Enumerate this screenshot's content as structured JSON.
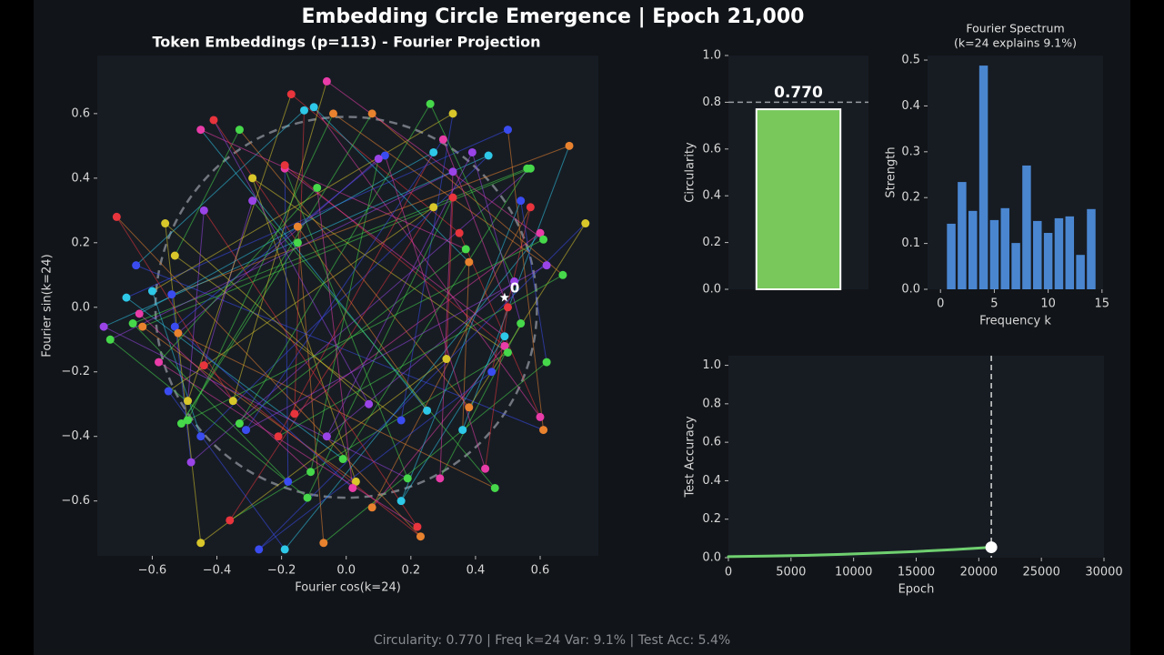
{
  "title": "Embedding Circle Emergence | Epoch 21,000",
  "footer": "Circularity: 0.770 | Freq k=24 Var: 9.1% | Test Acc: 5.4%",
  "chart_data": [
    {
      "type": "scatter",
      "title": "Token Embeddings (p=113) - Fourier Projection",
      "xlabel": "Fourier cos(k=24)",
      "ylabel": "Fourier sin(k=24)",
      "xlim": [
        -0.77,
        0.78
      ],
      "ylim": [
        -0.77,
        0.78
      ],
      "xticks": [
        {
          "value": -0.6,
          "label": "−0.6"
        },
        {
          "value": -0.4,
          "label": "−0.4"
        },
        {
          "value": -0.2,
          "label": "−0.2"
        },
        {
          "value": 0,
          "label": "0.0"
        },
        0.2,
        0.4,
        0.6
      ],
      "yticks": [
        {
          "value": -0.6,
          "label": "−0.6"
        },
        {
          "value": -0.4,
          "label": "−0.4"
        },
        {
          "value": -0.2,
          "label": "−0.2"
        },
        {
          "value": 0,
          "label": "0.0"
        },
        0.2,
        0.4,
        0.6
      ],
      "grid": false,
      "circle_radius": 0.59,
      "start_marker": {
        "label": "0",
        "x": 0.49,
        "y": 0.03
      },
      "x": [
        -0.17,
        -0.06,
        -0.41,
        -0.45,
        -0.33,
        -0.13,
        -0.1,
        -0.04,
        0.08,
        0.26,
        0.33,
        0.5,
        0.69,
        0.3,
        0.27,
        0.39,
        0.44,
        0.56,
        0.57,
        0.12,
        0.1,
        0.33,
        -0.19,
        -0.19,
        -0.29,
        -0.09,
        -0.29,
        0.33,
        0.54,
        0.57,
        0.27,
        -0.44,
        -0.71,
        -0.56,
        -0.15,
        0.74,
        0.6,
        0.35,
        0.61,
        -0.15,
        0.37,
        -0.53,
        -0.65,
        0.38,
        0.62,
        0.67,
        0.52,
        -0.6,
        -0.68,
        -0.54,
        0.5,
        -0.64,
        0.54,
        -0.75,
        -0.66,
        -0.63,
        -0.53,
        -0.52,
        -0.73,
        0.49,
        0.49,
        0.5,
        -0.58,
        -0.44,
        0.31,
        0.62,
        0.45,
        -0.55,
        -0.49,
        -0.35,
        0.07,
        0.25,
        0.38,
        -0.16,
        0.6,
        -0.49,
        -0.51,
        -0.33,
        0.17,
        0.61,
        0.36,
        -0.31,
        -0.21,
        -0.06,
        -0.45,
        -0.01,
        -0.48,
        0.43,
        -0.11,
        0.29,
        0.19,
        -0.18,
        0.03,
        0.02,
        0.46,
        -0.12,
        0.17,
        0.08,
        -0.36,
        0.22,
        0.23,
        -0.45,
        -0.07,
        -0.27,
        -0.19
      ],
      "values": [
        0.66,
        0.7,
        0.58,
        0.55,
        0.55,
        0.61,
        0.62,
        0.6,
        0.6,
        0.63,
        0.6,
        0.55,
        0.5,
        0.52,
        0.48,
        0.48,
        0.47,
        0.43,
        0.43,
        0.47,
        0.46,
        0.42,
        0.43,
        0.44,
        0.4,
        0.37,
        0.33,
        0.34,
        0.33,
        0.31,
        0.31,
        0.3,
        0.28,
        0.26,
        0.25,
        0.26,
        0.23,
        0.23,
        0.21,
        0.2,
        0.18,
        0.16,
        0.13,
        0.14,
        0.13,
        0.1,
        0.08,
        0.05,
        0.03,
        0.04,
        0.0,
        -0.02,
        -0.05,
        -0.06,
        -0.05,
        -0.06,
        -0.06,
        -0.08,
        -0.1,
        -0.09,
        -0.12,
        -0.14,
        -0.17,
        -0.18,
        -0.16,
        -0.17,
        -0.2,
        -0.26,
        -0.29,
        -0.29,
        -0.3,
        -0.32,
        -0.31,
        -0.33,
        -0.34,
        -0.35,
        -0.36,
        -0.36,
        -0.35,
        -0.38,
        -0.38,
        -0.38,
        -0.4,
        -0.4,
        -0.4,
        -0.47,
        -0.48,
        -0.5,
        -0.51,
        -0.53,
        -0.53,
        -0.54,
        -0.54,
        -0.56,
        -0.56,
        -0.59,
        -0.6,
        -0.62,
        -0.66,
        -0.68,
        -0.71,
        -0.73,
        -0.73,
        -0.75,
        -0.75
      ],
      "colors": [
        "#e8343c",
        "#e83ca8",
        "#e8343c",
        "#e83ca8",
        "#46d84a",
        "#2ec8e8",
        "#2ec8e8",
        "#e8822e",
        "#e8822e",
        "#46d84a",
        "#d8c62a",
        "#3a4cf0",
        "#e8822e",
        "#e83ca8",
        "#2ec8e8",
        "#9a44e8",
        "#2ec8e8",
        "#46d84a",
        "#46d84a",
        "#3a4cf0",
        "#9a44e8",
        "#9a44e8",
        "#e83ca8",
        "#e8343c",
        "#d8c62a",
        "#46d84a",
        "#9a44e8",
        "#e8343c",
        "#3a4cf0",
        "#e8343c",
        "#d8c62a",
        "#9a44e8",
        "#e8343c",
        "#d8c62a",
        "#e8822e",
        "#d8c62a",
        "#e83ca8",
        "#e8343c",
        "#46d84a",
        "#46d84a",
        "#46d84a",
        "#d8c62a",
        "#3a4cf0",
        "#e8822e",
        "#9a44e8",
        "#46d84a",
        "#9a44e8",
        "#2ec8e8",
        "#2ec8e8",
        "#3a4cf0",
        "#e8343c",
        "#e83ca8",
        "#46d84a",
        "#9a44e8",
        "#46d84a",
        "#e8822e",
        "#3a4cf0",
        "#e8822e",
        "#46d84a",
        "#2ec8e8",
        "#e83ca8",
        "#46d84a",
        "#e83ca8",
        "#e8343c",
        "#d8c62a",
        "#46d84a",
        "#3a4cf0",
        "#3a4cf0",
        "#d8c62a",
        "#d8c62a",
        "#9a44e8",
        "#2ec8e8",
        "#e8822e",
        "#e8343c",
        "#e83ca8",
        "#46d84a",
        "#46d84a",
        "#46d84a",
        "#3a4cf0",
        "#e8822e",
        "#2ec8e8",
        "#3a4cf0",
        "#e8343c",
        "#9a44e8",
        "#3a4cf0",
        "#46d84a",
        "#9a44e8",
        "#e83ca8",
        "#46d84a",
        "#e83ca8",
        "#46d84a",
        "#3a4cf0",
        "#d8c62a",
        "#e83ca8",
        "#46d84a",
        "#46d84a",
        "#2ec8e8",
        "#e8822e",
        "#e8343c",
        "#e8343c",
        "#e8822e",
        "#d8c62a",
        "#e8822e",
        "#3a4cf0",
        "#2ec8e8"
      ]
    },
    {
      "type": "bar",
      "ylabel": "Circularity",
      "values": [
        0.77
      ],
      "value_labels": [
        "0.770"
      ],
      "color": "#78c85c",
      "threshold": 0.8,
      "ylim": [
        0,
        1
      ],
      "yticks": [
        {
          "value": 0,
          "label": "0.0"
        },
        0.2,
        0.4,
        0.6,
        0.8,
        {
          "value": 1,
          "label": "1.0"
        }
      ],
      "grid": false
    },
    {
      "type": "bar",
      "title": "Fourier Spectrum",
      "subtitle": "(k=24 explains 9.1%)",
      "xlabel": "Frequency k",
      "ylabel": "Strength",
      "x": [
        1,
        2,
        3,
        4,
        5,
        6,
        7,
        8,
        9,
        10,
        11,
        12,
        13,
        14
      ],
      "values": [
        0.143,
        0.234,
        0.171,
        0.488,
        0.151,
        0.177,
        0.101,
        0.27,
        0.149,
        0.123,
        0.155,
        0.159,
        0.075,
        0.175
      ],
      "color": "#4a86d0",
      "xlim": [
        -1.2,
        15.1
      ],
      "ylim": [
        0,
        0.51
      ],
      "xticks": [
        0,
        5,
        10,
        15
      ],
      "yticks": [
        {
          "value": 0,
          "label": "0.0"
        },
        0.1,
        0.2,
        0.3,
        0.4,
        0.5
      ],
      "grid": false
    },
    {
      "type": "line",
      "xlabel": "Epoch",
      "ylabel": "Test Accuracy",
      "x": [
        0,
        3000,
        6000,
        9000,
        12000,
        15000,
        18000,
        21000
      ],
      "values": [
        0.005,
        0.008,
        0.012,
        0.017,
        0.024,
        0.032,
        0.042,
        0.054
      ],
      "color": "#6fcf6f",
      "current_epoch": 21000,
      "xlim": [
        0,
        30000
      ],
      "ylim": [
        0,
        1.05
      ],
      "xticks": [
        0,
        5000,
        10000,
        15000,
        20000,
        25000,
        30000
      ],
      "yticks": [
        {
          "value": 0,
          "label": "0.0"
        },
        0.2,
        0.4,
        0.6,
        0.8,
        {
          "value": 1,
          "label": "1.0"
        }
      ],
      "grid": false
    }
  ]
}
